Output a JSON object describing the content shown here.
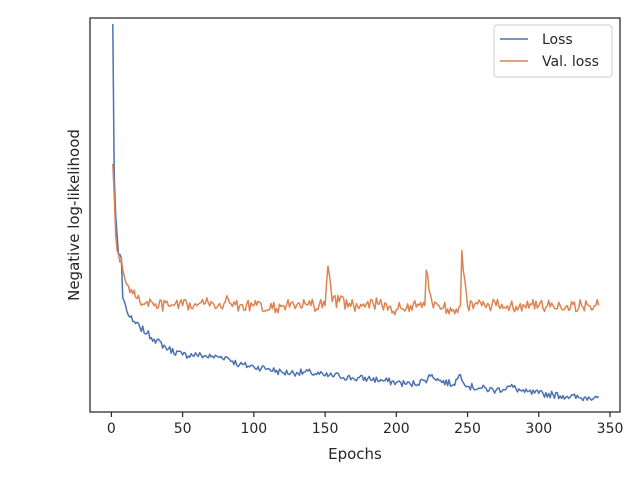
{
  "chart_data": {
    "type": "line",
    "xlabel": "Epochs",
    "ylabel": "Negative log-likelihood",
    "xlim": [
      -15,
      357
    ],
    "ylim": [
      0,
      1
    ],
    "x_ticks": [
      0,
      50,
      100,
      150,
      200,
      250,
      300,
      350
    ],
    "y_ticks": [],
    "grid": false,
    "legend_position": "upper right",
    "series": [
      {
        "name": "Loss",
        "color": "#4c72b0",
        "x": [
          1,
          2,
          3,
          4,
          5,
          6,
          7,
          8,
          10,
          12,
          15,
          20,
          25,
          30,
          40,
          50,
          60,
          70,
          75,
          80,
          90,
          100,
          110,
          120,
          130,
          140,
          150,
          160,
          170,
          180,
          190,
          200,
          210,
          220,
          225,
          230,
          240,
          245,
          250,
          260,
          270,
          280,
          290,
          300,
          310,
          320,
          330,
          335,
          340,
          342
        ],
        "y": [
          0.985,
          0.6,
          0.5,
          0.45,
          0.4,
          0.4,
          0.39,
          0.29,
          0.27,
          0.245,
          0.23,
          0.215,
          0.2,
          0.185,
          0.16,
          0.145,
          0.145,
          0.14,
          0.14,
          0.14,
          0.12,
          0.115,
          0.11,
          0.1,
          0.1,
          0.1,
          0.092,
          0.092,
          0.085,
          0.085,
          0.08,
          0.075,
          0.07,
          0.08,
          0.095,
          0.08,
          0.07,
          0.095,
          0.065,
          0.06,
          0.055,
          0.065,
          0.05,
          0.047,
          0.044,
          0.04,
          0.035,
          0.038,
          0.04,
          0.04
        ]
      },
      {
        "name": "Val. loss",
        "color": "#dd8452",
        "x": [
          1,
          2,
          3,
          4,
          5,
          6,
          7,
          8,
          10,
          12,
          15,
          20,
          25,
          30,
          40,
          50,
          60,
          70,
          75,
          80,
          90,
          100,
          110,
          120,
          130,
          140,
          150,
          152,
          155,
          160,
          170,
          180,
          190,
          200,
          210,
          220,
          221,
          225,
          230,
          240,
          245,
          246,
          250,
          260,
          270,
          280,
          290,
          300,
          310,
          320,
          330,
          335,
          340,
          342
        ],
        "y": [
          0.63,
          0.55,
          0.45,
          0.41,
          0.4,
          0.38,
          0.39,
          0.36,
          0.33,
          0.32,
          0.3,
          0.28,
          0.28,
          0.27,
          0.27,
          0.27,
          0.27,
          0.28,
          0.27,
          0.28,
          0.27,
          0.27,
          0.26,
          0.27,
          0.27,
          0.27,
          0.27,
          0.37,
          0.28,
          0.28,
          0.27,
          0.28,
          0.27,
          0.26,
          0.27,
          0.27,
          0.36,
          0.28,
          0.27,
          0.26,
          0.27,
          0.41,
          0.27,
          0.27,
          0.27,
          0.27,
          0.27,
          0.27,
          0.27,
          0.27,
          0.27,
          0.27,
          0.27,
          0.27
        ]
      }
    ]
  }
}
